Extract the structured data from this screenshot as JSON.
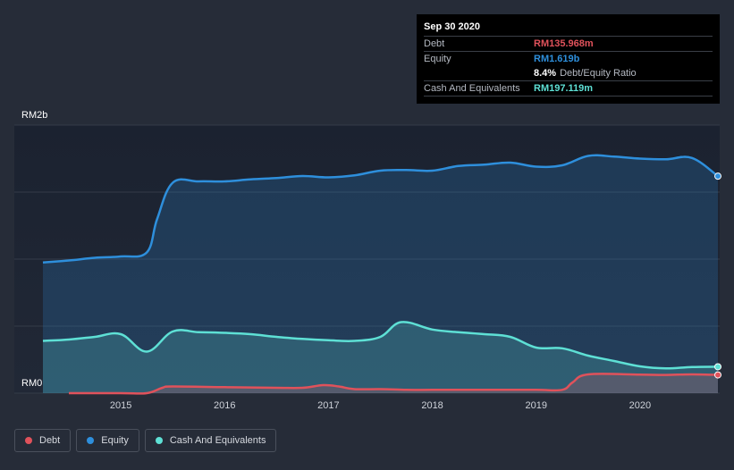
{
  "chart_data": {
    "type": "area",
    "title": "",
    "currency": "RM",
    "y_axis_labels": [
      "RM2b",
      "RM0"
    ],
    "ylim": [
      0,
      2000
    ],
    "y_unit": "RM millions",
    "x_ticks": [
      "2015",
      "2016",
      "2017",
      "2018",
      "2019",
      "2020"
    ],
    "xlim": [
      2014.25,
      2020.75
    ],
    "grid": true,
    "legend_position": "bottom-left",
    "series": [
      {
        "name": "Debt",
        "color": "#e0525b",
        "x": [
          2014.5,
          2015.0,
          2015.25,
          2015.4,
          2015.5,
          2016.0,
          2016.5,
          2016.75,
          2016.95,
          2017.1,
          2017.25,
          2017.5,
          2017.75,
          2018.0,
          2018.5,
          2019.0,
          2019.25,
          2019.35,
          2019.5,
          2020.0,
          2020.25,
          2020.5,
          2020.75
        ],
        "values": [
          0,
          0,
          0,
          40,
          50,
          45,
          40,
          40,
          60,
          50,
          30,
          30,
          25,
          25,
          25,
          25,
          25,
          80,
          140,
          138,
          136,
          140,
          136
        ]
      },
      {
        "name": "Equity",
        "color": "#2e8fdc",
        "x": [
          2014.25,
          2014.5,
          2014.75,
          2015.0,
          2015.25,
          2015.35,
          2015.5,
          2015.75,
          2016.0,
          2016.25,
          2016.5,
          2016.75,
          2017.0,
          2017.25,
          2017.5,
          2017.75,
          2018.0,
          2018.25,
          2018.5,
          2018.75,
          2019.0,
          2019.25,
          2019.5,
          2019.75,
          2020.0,
          2020.25,
          2020.5,
          2020.75
        ],
        "values": [
          975,
          990,
          1010,
          1020,
          1050,
          1300,
          1570,
          1580,
          1580,
          1595,
          1605,
          1620,
          1610,
          1625,
          1660,
          1665,
          1660,
          1695,
          1705,
          1720,
          1690,
          1700,
          1770,
          1765,
          1750,
          1745,
          1755,
          1619
        ]
      },
      {
        "name": "Cash And Equivalents",
        "color": "#5ee0d5",
        "x": [
          2014.25,
          2014.5,
          2014.75,
          2015.0,
          2015.25,
          2015.5,
          2015.75,
          2016.0,
          2016.25,
          2016.5,
          2016.75,
          2017.0,
          2017.25,
          2017.5,
          2017.7,
          2018.0,
          2018.25,
          2018.5,
          2018.75,
          2019.0,
          2019.25,
          2019.5,
          2019.75,
          2020.0,
          2020.25,
          2020.5,
          2020.75
        ],
        "values": [
          390,
          400,
          420,
          440,
          310,
          460,
          455,
          450,
          440,
          420,
          405,
          395,
          390,
          420,
          530,
          475,
          455,
          440,
          420,
          340,
          335,
          280,
          240,
          200,
          185,
          195,
          197
        ]
      }
    ]
  },
  "tooltip": {
    "date": "Sep 30 2020",
    "rows": [
      {
        "label": "Debt",
        "value": "RM135.968m",
        "color": "#e0525b"
      },
      {
        "label": "Equity",
        "value": "RM1.619b",
        "color": "#2e8fdc"
      }
    ],
    "ratio_value": "8.4%",
    "ratio_label": "Debt/Equity Ratio",
    "cash_label": "Cash And Equivalents",
    "cash_value": "RM197.119m",
    "cash_color": "#5ee0d5"
  },
  "legend": [
    {
      "label": "Debt",
      "color": "#e0525b"
    },
    {
      "label": "Equity",
      "color": "#2e8fdc"
    },
    {
      "label": "Cash And Equivalents",
      "color": "#5ee0d5"
    }
  ]
}
